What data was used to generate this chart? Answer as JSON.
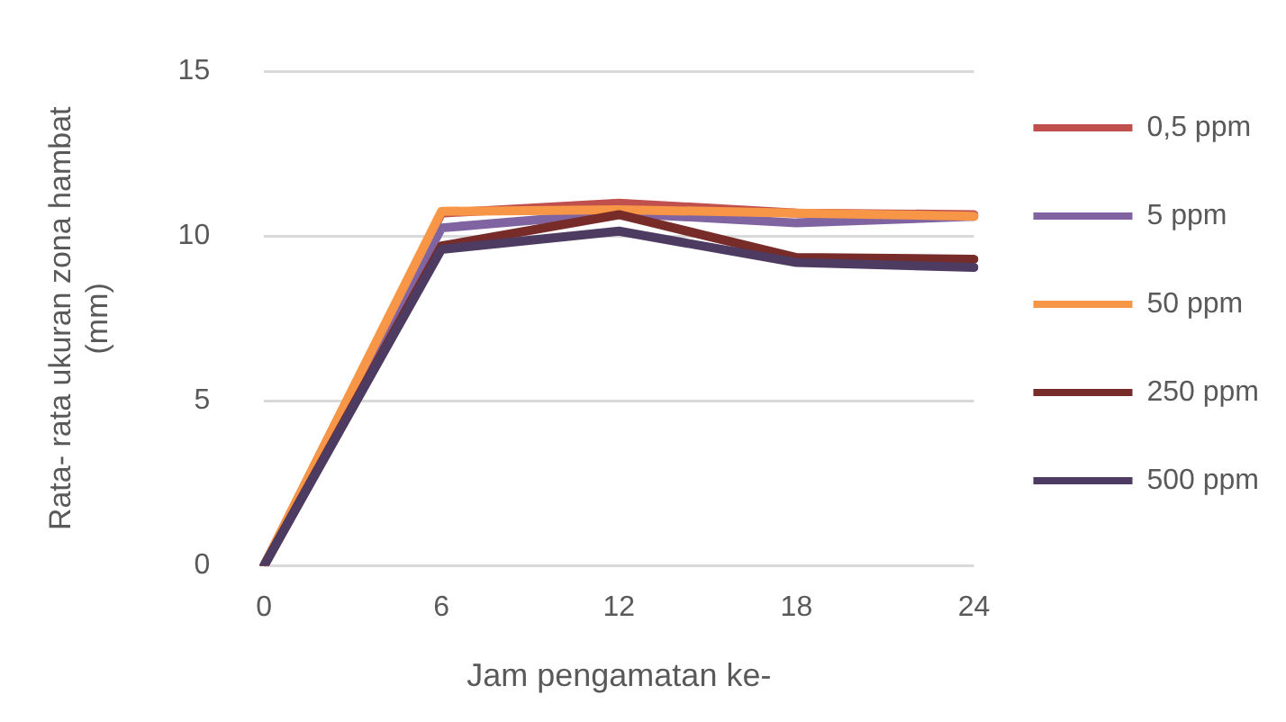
{
  "chart_data": {
    "type": "line",
    "xlabel": "Jam pengamatan ke-",
    "ylabel": "Rata- rata ukuran zona hambat (mm)",
    "categories": [
      "0",
      "6",
      "12",
      "18",
      "24"
    ],
    "ylim": [
      0,
      15
    ],
    "yticks": [
      0,
      5,
      10,
      15
    ],
    "grid": "y",
    "legend": "right",
    "marker": "none",
    "line_style": "solid",
    "series": [
      {
        "name": "0,5 ppm",
        "color": "#c0504d",
        "values": [
          0,
          10.7,
          11.0,
          10.7,
          10.65
        ]
      },
      {
        "name": "5 ppm",
        "color": "#8064a2",
        "values": [
          0,
          10.25,
          10.7,
          10.4,
          10.6
        ]
      },
      {
        "name": "50 ppm",
        "color": "#f79646",
        "values": [
          0,
          10.75,
          10.8,
          10.7,
          10.6
        ]
      },
      {
        "name": "250 ppm",
        "color": "#772c2a",
        "values": [
          0,
          9.7,
          10.65,
          9.35,
          9.3
        ]
      },
      {
        "name": "500 ppm",
        "color": "#4d3b62",
        "values": [
          0,
          9.6,
          10.15,
          9.2,
          9.05
        ]
      }
    ]
  }
}
